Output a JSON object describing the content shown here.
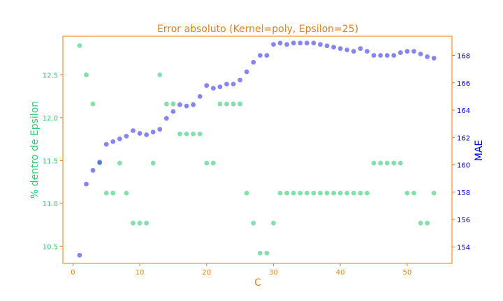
{
  "chart_data": {
    "type": "scatter",
    "title": "Error absoluto (Kernel=poly, Epsilon=25)",
    "xlabel": "C",
    "ylabel_left": "% dentro de Epsilon",
    "ylabel_right": "MAE",
    "xlim": [
      -1.5,
      56.7
    ],
    "ylim_left": [
      10.3,
      12.95
    ],
    "ylim_right": [
      152.8,
      169.4
    ],
    "x_ticks": [
      0,
      10,
      20,
      30,
      40,
      50
    ],
    "y_ticks_left": [
      10.5,
      11.0,
      11.5,
      12.0,
      12.5
    ],
    "y_ticks_right": [
      154,
      156,
      158,
      160,
      162,
      164,
      166,
      168
    ],
    "grid": false,
    "colors": {
      "frame": "#e67e0e",
      "left_axis": "#2ecc71",
      "right_axis": "#0000ee",
      "green_points": "#2ecc71",
      "blue_points": "#3333ee"
    },
    "series": [
      {
        "axis": "left",
        "color": "#2ecc71",
        "x": [
          1,
          2,
          3,
          4,
          5,
          6,
          7,
          8,
          9,
          10,
          11,
          12,
          13,
          14,
          15,
          16,
          17,
          18,
          19,
          20,
          21,
          22,
          23,
          24,
          25,
          26,
          27,
          28,
          29,
          30,
          31,
          32,
          33,
          34,
          35,
          36,
          37,
          38,
          39,
          40,
          41,
          42,
          43,
          44,
          45,
          46,
          47,
          48,
          49,
          50,
          51,
          52,
          53,
          54
        ],
        "y": [
          12.84,
          12.5,
          12.16,
          11.47,
          11.12,
          11.12,
          11.47,
          11.12,
          10.77,
          10.77,
          10.77,
          11.47,
          12.5,
          12.16,
          12.16,
          11.81,
          11.81,
          11.81,
          11.81,
          11.47,
          11.47,
          12.16,
          12.16,
          12.16,
          12.16,
          11.12,
          10.77,
          10.42,
          10.42,
          10.77,
          11.12,
          11.12,
          11.12,
          11.12,
          11.12,
          11.12,
          11.12,
          11.12,
          11.12,
          11.12,
          11.12,
          11.12,
          11.12,
          11.12,
          11.47,
          11.47,
          11.47,
          11.47,
          11.47,
          11.12,
          11.12,
          10.77,
          10.77,
          11.12
        ]
      },
      {
        "axis": "right",
        "color": "#3333ee",
        "x": [
          1,
          2,
          3,
          4,
          5,
          6,
          7,
          8,
          9,
          10,
          11,
          12,
          13,
          14,
          15,
          16,
          17,
          18,
          19,
          20,
          21,
          22,
          23,
          24,
          25,
          26,
          27,
          28,
          29,
          30,
          31,
          32,
          33,
          34,
          35,
          36,
          37,
          38,
          39,
          40,
          41,
          42,
          43,
          44,
          45,
          46,
          47,
          48,
          49,
          50,
          51,
          52,
          53,
          54
        ],
        "y": [
          153.4,
          158.6,
          159.6,
          160.2,
          161.5,
          161.7,
          161.9,
          162.1,
          162.5,
          162.3,
          162.2,
          162.4,
          162.6,
          163.4,
          163.9,
          164.4,
          164.3,
          164.4,
          165.0,
          165.8,
          165.6,
          165.7,
          165.9,
          165.9,
          166.2,
          166.8,
          167.5,
          168.0,
          168.0,
          168.8,
          168.9,
          168.8,
          168.9,
          168.9,
          168.9,
          168.9,
          168.8,
          168.7,
          168.6,
          168.5,
          168.4,
          168.3,
          168.5,
          168.3,
          168.0,
          168.0,
          168.0,
          168.0,
          168.2,
          168.3,
          168.3,
          168.1,
          167.9,
          167.8
        ]
      }
    ]
  }
}
